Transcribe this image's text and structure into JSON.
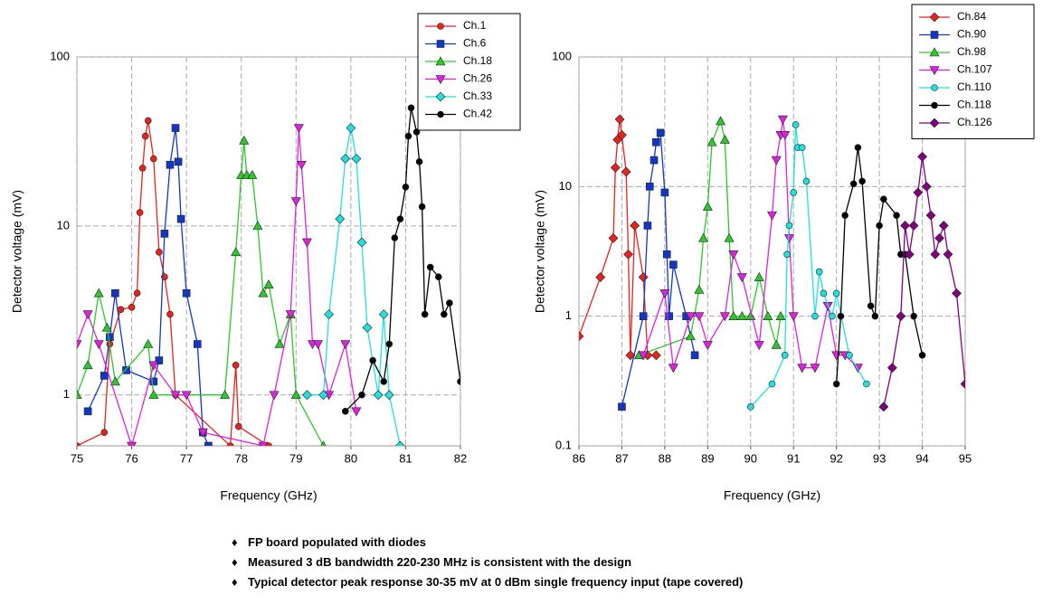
{
  "chart_data": [
    {
      "type": "line",
      "xlabel": "Frequency (GHz)",
      "ylabel": "Detector voltage (mV)",
      "yscale": "log",
      "grid": true,
      "legend": "top-right",
      "xlim": [
        75,
        82
      ],
      "xticks": [
        75,
        76,
        77,
        78,
        79,
        80,
        81,
        82
      ],
      "ylim": [
        0.5,
        100
      ],
      "yticks": [
        1,
        10,
        100
      ],
      "series": [
        {
          "name": "Ch.1",
          "color": "#e8231c",
          "marker": "circle",
          "x": [
            75,
            75.5,
            75.6,
            75.8,
            76,
            76.1,
            76.15,
            76.2,
            76.25,
            76.3,
            76.4,
            76.5,
            76.6,
            76.7,
            76.8,
            77.8,
            77.9,
            77.95,
            78.5
          ],
          "values": [
            0.5,
            0.6,
            2,
            3.2,
            3.3,
            4,
            12,
            22,
            34,
            42,
            25,
            7,
            5,
            3,
            1,
            0.5,
            1.5,
            0.65,
            0.5
          ]
        },
        {
          "name": "Ch.6",
          "color": "#1136c8",
          "marker": "square",
          "x": [
            75.2,
            75.5,
            75.6,
            75.7,
            75.9,
            76.4,
            76.5,
            76.6,
            76.7,
            76.8,
            76.85,
            76.9,
            77,
            77.2,
            77.3,
            77.4
          ],
          "values": [
            0.8,
            1.3,
            2.2,
            4,
            1.4,
            1.2,
            1.6,
            9,
            23,
            38,
            24,
            11,
            4,
            2,
            0.6,
            0.5
          ]
        },
        {
          "name": "Ch.18",
          "color": "#2ac92a",
          "marker": "triangle",
          "x": [
            75,
            75.2,
            75.4,
            75.55,
            75.7,
            76.3,
            76.4,
            77.7,
            77.9,
            78,
            78.05,
            78.1,
            78.2,
            78.3,
            78.4,
            78.5,
            78.7,
            78.9,
            79,
            79.5
          ],
          "values": [
            1,
            1.5,
            4,
            2.5,
            1.2,
            2,
            1,
            1,
            7,
            20,
            32,
            20,
            20,
            10,
            4,
            4.5,
            2,
            3,
            1,
            0.5
          ]
        },
        {
          "name": "Ch.26",
          "color": "#e020e0",
          "marker": "triangle-down",
          "x": [
            75,
            75.2,
            75.4,
            76,
            76.4,
            76.8,
            77,
            77.3,
            78.4,
            78.6,
            78.9,
            79,
            79.05,
            79.1,
            79.2,
            79.3,
            79.4,
            79.6,
            79.9,
            80.1
          ],
          "values": [
            2,
            3,
            2,
            0.5,
            1.5,
            1,
            1,
            0.6,
            0.5,
            1,
            3,
            14,
            38,
            23,
            8,
            2,
            2,
            1,
            2,
            0.8
          ]
        },
        {
          "name": "Ch.33",
          "color": "#20e0e0",
          "marker": "diamond",
          "x": [
            79.2,
            79.5,
            79.6,
            79.8,
            79.9,
            80,
            80.1,
            80.2,
            80.3,
            80.5,
            80.6,
            80.7,
            80.9
          ],
          "values": [
            1,
            1,
            3,
            11,
            25,
            38,
            25,
            8,
            2.5,
            1,
            3,
            1,
            0.5
          ]
        },
        {
          "name": "Ch.42",
          "color": "#000000",
          "marker": "circle",
          "x": [
            79.9,
            80.2,
            80.4,
            80.6,
            80.7,
            80.8,
            80.9,
            81,
            81.05,
            81.1,
            81.2,
            81.25,
            81.3,
            81.35,
            81.45,
            81.6,
            81.7,
            81.8,
            82
          ],
          "values": [
            0.8,
            1,
            1.6,
            1.2,
            2,
            8.5,
            11,
            17,
            34,
            50,
            36,
            24,
            13,
            3,
            5.7,
            5,
            3,
            3.5,
            1.2
          ]
        }
      ]
    },
    {
      "type": "line",
      "xlabel": "Frequency (GHz)",
      "ylabel": "Detector voltage (mV)",
      "yscale": "log",
      "grid": true,
      "legend": "top-right",
      "xlim": [
        86,
        95
      ],
      "xticks": [
        86,
        87,
        88,
        89,
        90,
        91,
        92,
        93,
        94,
        95
      ],
      "ylim": [
        0.1,
        100
      ],
      "yticks": [
        0.1,
        1,
        10,
        100
      ],
      "series": [
        {
          "name": "Ch.84",
          "color": "#e8231c",
          "marker": "diamond",
          "x": [
            86,
            86.5,
            86.8,
            86.85,
            86.9,
            86.95,
            87,
            87.1,
            87.15,
            87.2,
            87.3,
            87.5,
            87.6,
            87.8
          ],
          "values": [
            0.7,
            2,
            4,
            14,
            23,
            33,
            25,
            13,
            3,
            0.5,
            5,
            2,
            0.5,
            0.5
          ]
        },
        {
          "name": "Ch.90",
          "color": "#1136c8",
          "marker": "square",
          "x": [
            87,
            87.5,
            87.6,
            87.65,
            87.75,
            87.8,
            87.9,
            88,
            88.05,
            88.1,
            88.2,
            88.5,
            88.7
          ],
          "values": [
            0.2,
            1,
            5,
            10,
            16,
            22,
            26,
            9,
            3,
            1,
            2.5,
            1,
            0.5
          ]
        },
        {
          "name": "Ch.98",
          "color": "#2ac92a",
          "marker": "triangle",
          "x": [
            87.4,
            88.6,
            88.8,
            88.9,
            89,
            89.1,
            89.3,
            89.4,
            89.5,
            89.6,
            89.8,
            90,
            90.2,
            90.4,
            90.6,
            90.7
          ],
          "values": [
            0.5,
            0.7,
            1.6,
            4,
            7,
            22,
            32,
            23,
            4,
            1,
            1,
            1,
            2,
            1,
            0.6,
            1
          ]
        },
        {
          "name": "Ch.107",
          "color": "#e020e0",
          "marker": "triangle-down",
          "x": [
            87.5,
            88,
            88.2,
            88.6,
            88.8,
            89,
            89.4,
            89.6,
            89.8,
            90.2,
            90.5,
            90.6,
            90.7,
            90.75,
            90.8,
            90.9,
            91,
            91.2,
            91.5,
            91.8,
            92,
            92.2,
            92.5
          ],
          "values": [
            0.5,
            1.5,
            0.4,
            1,
            1,
            0.6,
            1,
            3,
            2,
            0.6,
            6,
            16,
            25,
            33,
            25,
            4,
            1,
            0.4,
            0.4,
            1.2,
            0.5,
            0.5,
            0.4
          ]
        },
        {
          "name": "Ch.110",
          "color": "#20e0e0",
          "marker": "circle",
          "x": [
            90,
            90.5,
            90.8,
            90.85,
            90.9,
            91,
            91.05,
            91.1,
            91.2,
            91.3,
            91.5,
            91.6,
            91.7,
            91.9,
            92,
            92.3,
            92.7
          ],
          "values": [
            0.2,
            0.3,
            0.5,
            3,
            5,
            9,
            30,
            20,
            20,
            11,
            1,
            2.2,
            1.5,
            1,
            1.5,
            0.5,
            0.3
          ]
        },
        {
          "name": "Ch.118",
          "color": "#000000",
          "marker": "circle",
          "x": [
            92,
            92.1,
            92.2,
            92.4,
            92.5,
            92.6,
            92.8,
            92.9,
            93,
            93.1,
            93.4,
            93.5,
            93.6,
            93.8,
            94
          ],
          "values": [
            0.3,
            1,
            6,
            10.5,
            20,
            11,
            1.2,
            1,
            5,
            8,
            6,
            3,
            3,
            1,
            0.5
          ]
        },
        {
          "name": "Ch.126",
          "color": "#800080",
          "marker": "diamond",
          "x": [
            93.1,
            93.3,
            93.5,
            93.6,
            93.7,
            93.8,
            93.9,
            94,
            94.1,
            94.2,
            94.3,
            94.4,
            94.5,
            94.6,
            94.8,
            95
          ],
          "values": [
            0.2,
            0.4,
            1,
            5,
            3,
            5,
            9,
            17,
            10,
            6,
            3,
            4,
            5,
            3,
            1.5,
            0.3
          ]
        }
      ]
    }
  ],
  "notes": [
    "FP board populated with diodes",
    "Measured 3 dB bandwidth 220-230 MHz is consistent with the design",
    "Typical detector peak response 30-35 mV at 0 dBm single frequency input (tape covered)"
  ]
}
